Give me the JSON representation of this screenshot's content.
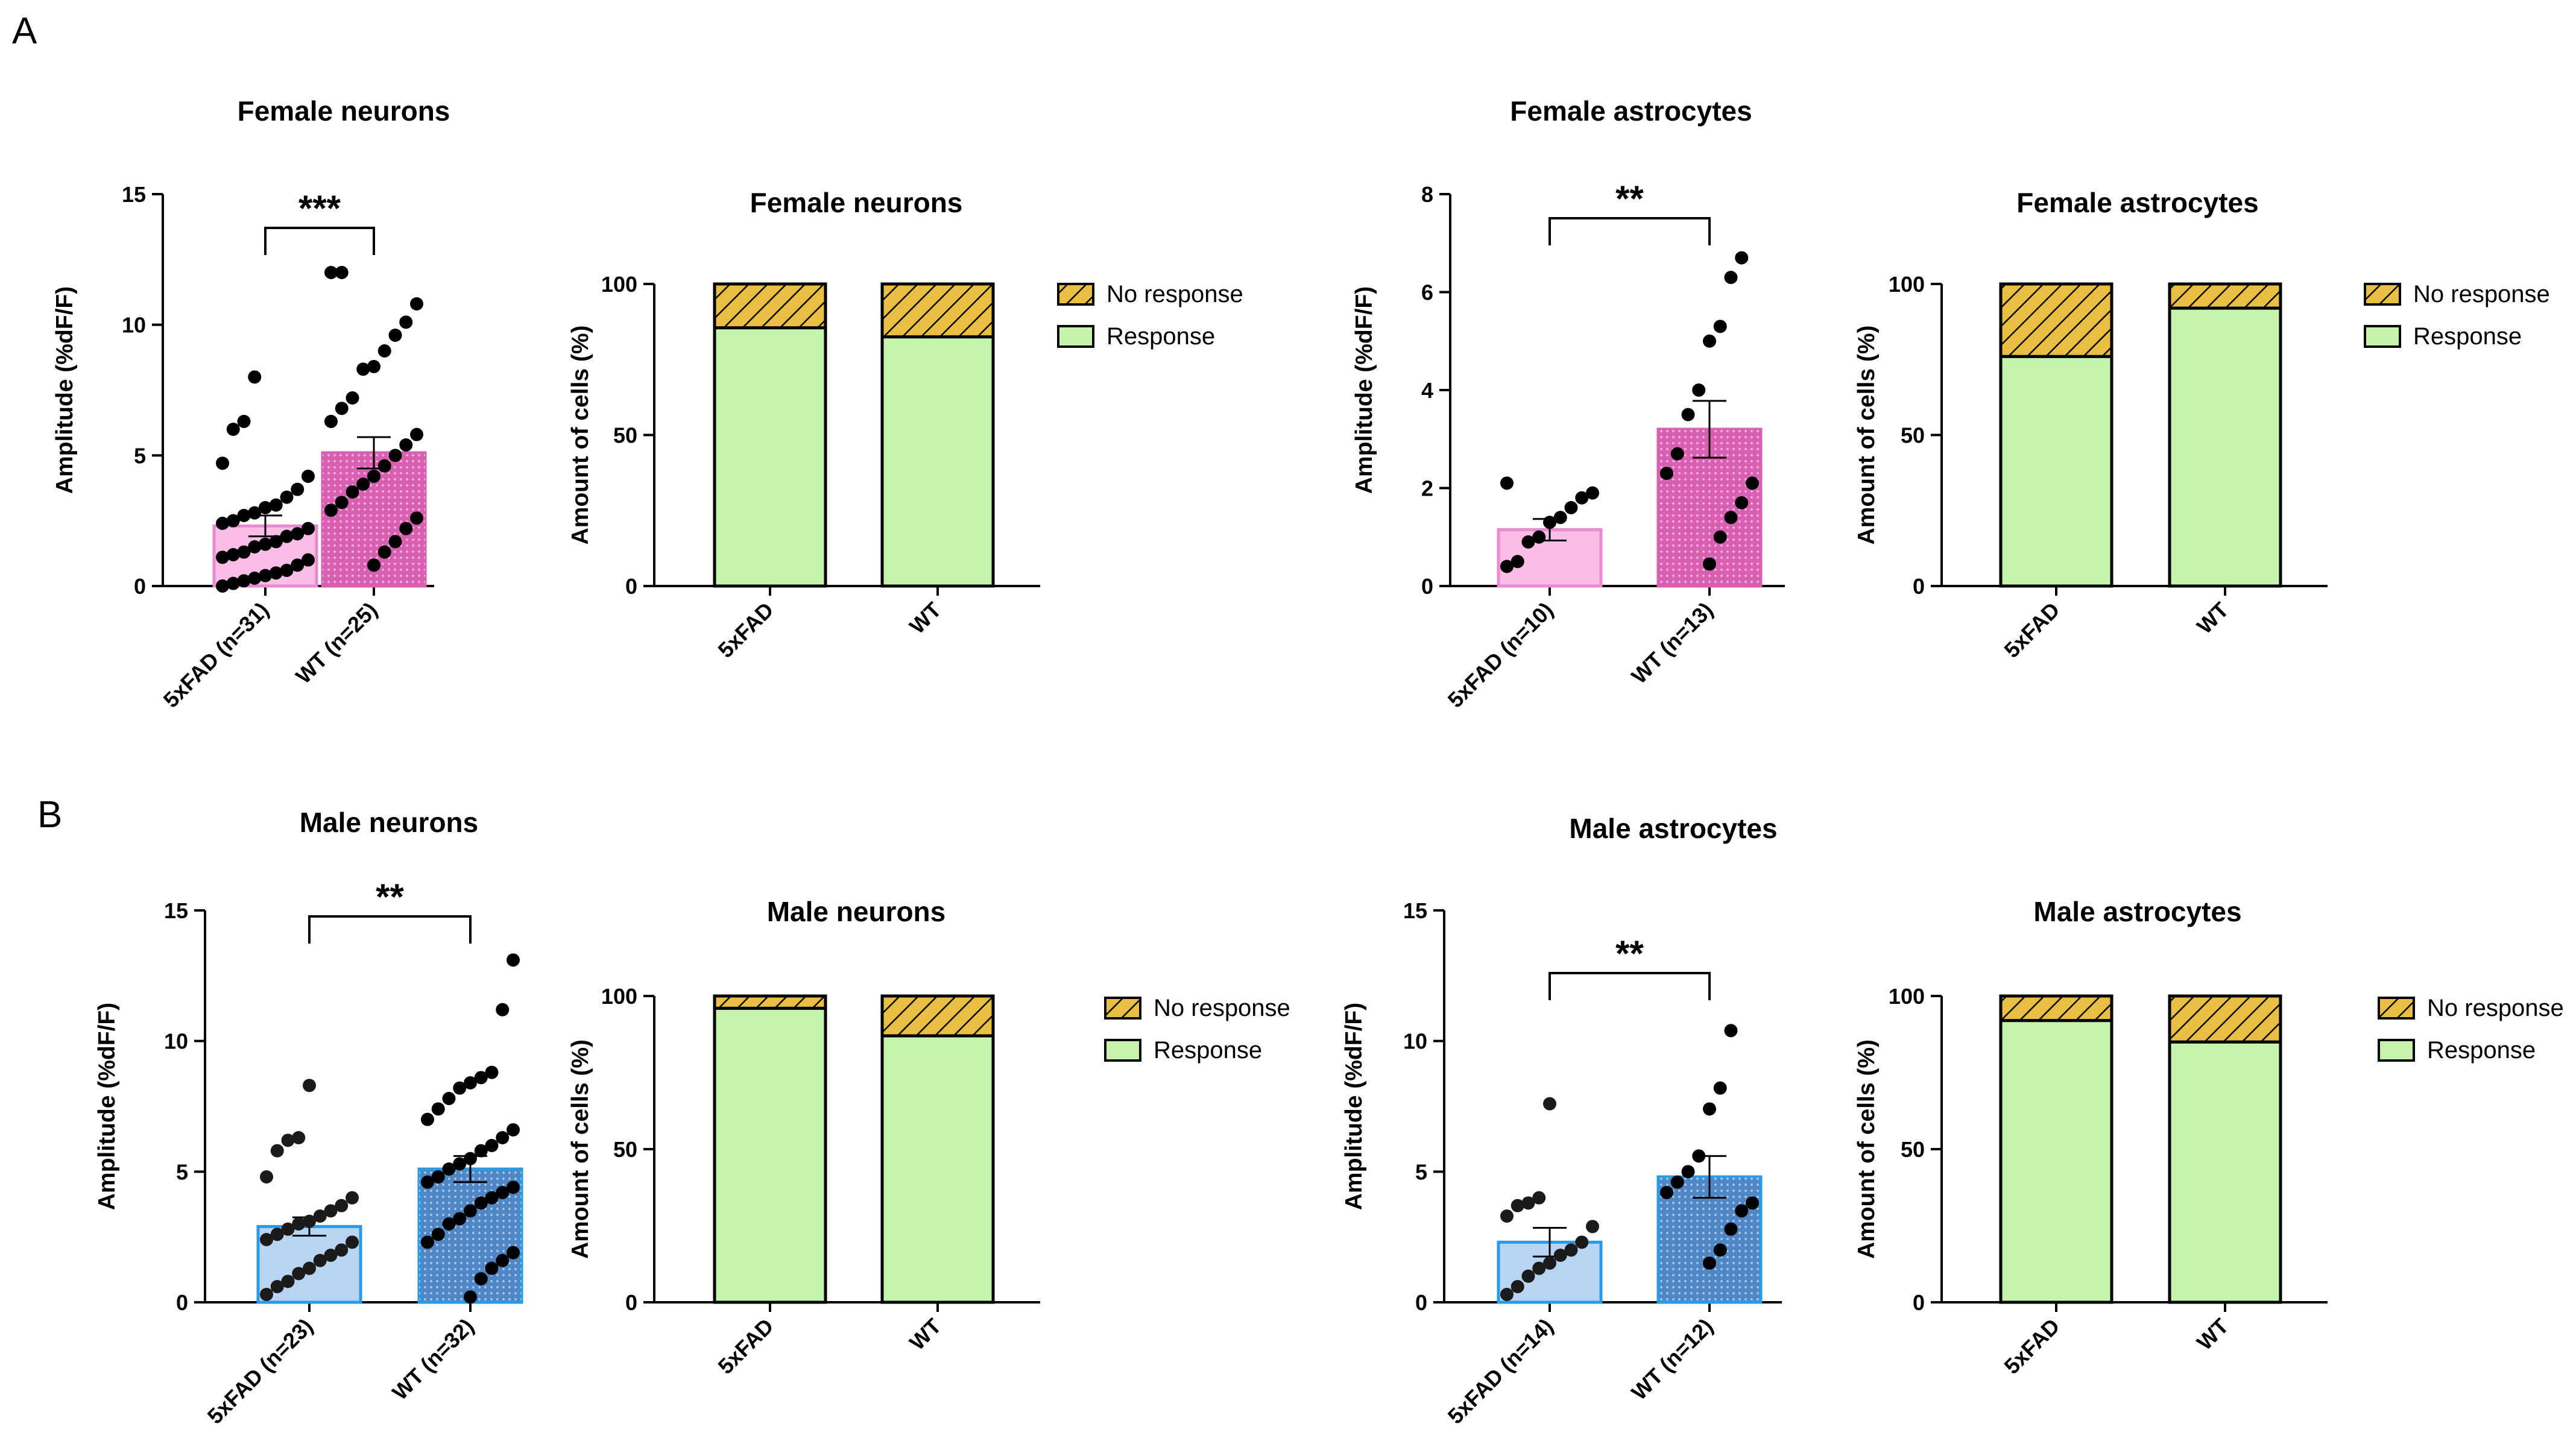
{
  "panels": [
    {
      "letter": "A"
    },
    {
      "letter": "B"
    }
  ],
  "styles": {
    "female_bar": {
      "fill": "#f9bde6",
      "edge": "#e88ad0",
      "dots": "#000000"
    },
    "female_bar_dotted": {
      "fill": "#d95fb3",
      "edge": "#d95fb3",
      "dots": "#000000"
    },
    "male_bar": {
      "fill": "#b9d4f3",
      "edge": "#2a9be3",
      "dots": "#1b1b1b"
    },
    "male_bar_dotted": {
      "fill": "#4f86c6",
      "edge": "#2a9be3",
      "dots": "#000000"
    },
    "response_color": "#c5f5ad",
    "no_response_color": "#e8bf43",
    "axis_color": "#000000"
  },
  "chart_data": [
    {
      "type": "bar",
      "variant": "scatter-bar",
      "panel": "A",
      "title": "Female neurons",
      "ylabel": "Amplitude (%dF/F)",
      "ylim": [
        0,
        15
      ],
      "yticks": [
        "0",
        "5",
        "10",
        "15"
      ],
      "categories": [
        "5xFAD (n=31)",
        "WT (n=25)"
      ],
      "values": [
        2.3,
        5.1
      ],
      "sem": [
        0.4,
        0.6
      ],
      "points": [
        [
          0,
          0.1,
          0.2,
          0.3,
          0.4,
          0.5,
          0.6,
          0.8,
          1.0,
          1.1,
          1.2,
          1.3,
          1.5,
          1.6,
          1.7,
          1.9,
          2.0,
          2.2,
          2.4,
          2.5,
          2.7,
          2.8,
          3.0,
          3.1,
          3.4,
          3.7,
          4.2,
          4.7,
          6.0,
          6.3,
          8.0
        ],
        [
          0.8,
          1.3,
          1.7,
          2.2,
          2.6,
          2.9,
          3.2,
          3.6,
          3.9,
          4.2,
          4.6,
          5.0,
          5.4,
          5.8,
          6.3,
          6.8,
          7.2,
          8.3,
          8.4,
          9.0,
          9.6,
          10.1,
          10.8,
          12.0,
          12.0
        ]
      ],
      "significance": "***",
      "style_keys": [
        "female_bar",
        "female_bar_dotted"
      ]
    },
    {
      "type": "bar",
      "variant": "stacked",
      "panel": "A",
      "title": "Female neurons",
      "ylabel": "Amount of cells (%)",
      "ylim": [
        0,
        100
      ],
      "yticks": [
        "0",
        "50",
        "100"
      ],
      "categories": [
        "5xFAD",
        "WT"
      ],
      "series": [
        {
          "name": "Response",
          "values": [
            85.5,
            82.5
          ]
        },
        {
          "name": "No response",
          "values": [
            14.5,
            17.5
          ]
        }
      ],
      "legend": "right"
    },
    {
      "type": "bar",
      "variant": "scatter-bar",
      "panel": "A",
      "title": "Female astrocytes",
      "ylabel": "Amplitude (%dF/F)",
      "ylim": [
        0,
        8
      ],
      "yticks": [
        "0",
        "2",
        "4",
        "6",
        "8"
      ],
      "categories": [
        "5xFAD (n=10)",
        "WT (n=13)"
      ],
      "values": [
        1.15,
        3.2
      ],
      "sem": [
        0.22,
        0.58
      ],
      "points": [
        [
          0.4,
          0.5,
          0.9,
          1.0,
          1.3,
          1.4,
          1.6,
          1.8,
          1.9,
          2.1
        ],
        [
          0.45,
          1.0,
          1.4,
          1.7,
          2.1,
          2.3,
          2.7,
          3.5,
          4.0,
          5.0,
          5.3,
          6.3,
          6.7
        ]
      ],
      "significance": "**",
      "style_keys": [
        "female_bar",
        "female_bar_dotted"
      ]
    },
    {
      "type": "bar",
      "variant": "stacked",
      "panel": "A",
      "title": "Female astrocytes",
      "ylabel": "Amount of cells (%)",
      "ylim": [
        0,
        100
      ],
      "yticks": [
        "0",
        "50",
        "100"
      ],
      "categories": [
        "5xFAD",
        "WT"
      ],
      "series": [
        {
          "name": "Response",
          "values": [
            76,
            92
          ]
        },
        {
          "name": "No response",
          "values": [
            24,
            8
          ]
        }
      ],
      "legend": "right"
    },
    {
      "type": "bar",
      "variant": "scatter-bar",
      "panel": "B",
      "title": "Male neurons",
      "ylabel": "Amplitude (%dF/F)",
      "ylim": [
        0,
        15
      ],
      "yticks": [
        "0",
        "5",
        "10",
        "15"
      ],
      "categories": [
        "5xFAD (n=23)",
        "WT (n=32)"
      ],
      "values": [
        2.9,
        5.1
      ],
      "sem": [
        0.35,
        0.5
      ],
      "points": [
        [
          0.3,
          0.6,
          0.8,
          1.1,
          1.3,
          1.6,
          1.8,
          2.0,
          2.3,
          2.4,
          2.6,
          2.8,
          3.0,
          3.1,
          3.3,
          3.5,
          3.7,
          4.0,
          4.8,
          5.8,
          6.2,
          6.3,
          8.3
        ],
        [
          0.2,
          0.9,
          1.3,
          1.6,
          1.9,
          2.3,
          2.6,
          3.0,
          3.2,
          3.5,
          3.8,
          4.0,
          4.2,
          4.4,
          4.6,
          4.8,
          5.1,
          5.3,
          5.5,
          5.8,
          6.0,
          6.3,
          6.6,
          7.0,
          7.4,
          7.8,
          8.2,
          8.4,
          8.6,
          8.8,
          11.2,
          13.1
        ]
      ],
      "significance": "**",
      "style_keys": [
        "male_bar",
        "male_bar_dotted"
      ]
    },
    {
      "type": "bar",
      "variant": "stacked",
      "panel": "B",
      "title": "Male neurons",
      "ylabel": "Amount of cells (%)",
      "ylim": [
        0,
        100
      ],
      "yticks": [
        "0",
        "50",
        "100"
      ],
      "categories": [
        "5xFAD",
        "WT"
      ],
      "series": [
        {
          "name": "Response",
          "values": [
            96,
            87
          ]
        },
        {
          "name": "No response",
          "values": [
            4,
            13
          ]
        }
      ],
      "legend": "right"
    },
    {
      "type": "bar",
      "variant": "scatter-bar",
      "panel": "B",
      "title": "Male astrocytes",
      "ylabel": "Amplitude (%dF/F)",
      "ylim": [
        0,
        15
      ],
      "yticks": [
        "0",
        "5",
        "10",
        "15"
      ],
      "categories": [
        "5xFAD (n=14)",
        "WT (n=12)"
      ],
      "values": [
        2.3,
        4.8
      ],
      "sem": [
        0.55,
        0.8
      ],
      "points": [
        [
          0.3,
          0.6,
          1.0,
          1.3,
          1.5,
          1.8,
          2.0,
          2.3,
          2.9,
          3.3,
          3.7,
          3.8,
          4.0,
          7.6
        ],
        [
          1.5,
          2.0,
          2.8,
          3.5,
          3.8,
          4.2,
          4.6,
          5.0,
          5.6,
          7.4,
          8.2,
          10.4
        ]
      ],
      "significance": "**",
      "style_keys": [
        "male_bar",
        "male_bar_dotted"
      ]
    },
    {
      "type": "bar",
      "variant": "stacked",
      "panel": "B",
      "title": "Male astrocytes",
      "ylabel": "Amount of cells (%)",
      "ylim": [
        0,
        100
      ],
      "yticks": [
        "0",
        "50",
        "100"
      ],
      "categories": [
        "5xFAD",
        "WT"
      ],
      "series": [
        {
          "name": "Response",
          "values": [
            92,
            85
          ]
        },
        {
          "name": "No response",
          "values": [
            8,
            15
          ]
        }
      ],
      "legend": "right"
    }
  ]
}
